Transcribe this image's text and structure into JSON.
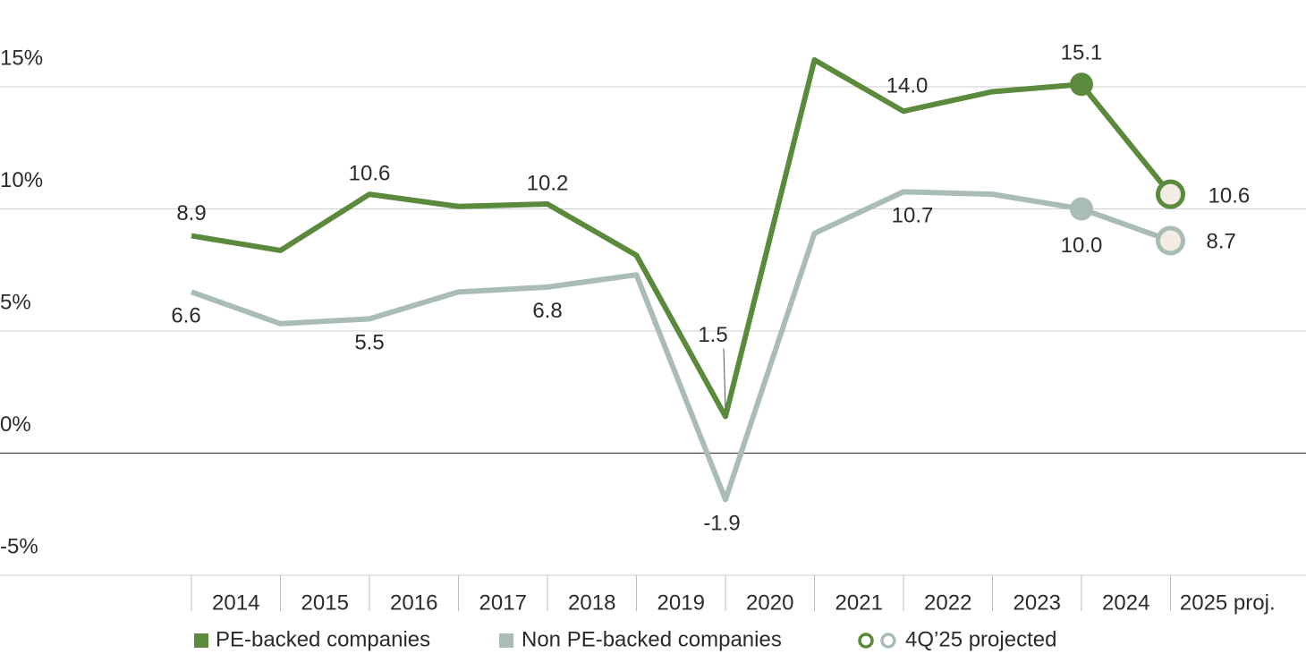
{
  "chart_data": {
    "type": "line",
    "categories": [
      "2014",
      "2015",
      "2016",
      "2017",
      "2018",
      "2019",
      "2020",
      "2021",
      "2022",
      "2023",
      "2024",
      "2025 proj."
    ],
    "series": [
      {
        "name": "PE-backed companies",
        "color": "#5b8a3c",
        "values": [
          8.9,
          8.3,
          10.6,
          10.1,
          10.2,
          8.1,
          1.5,
          16.1,
          14.0,
          14.8,
          15.1,
          10.6
        ],
        "value_labels": [
          "8.9",
          null,
          "10.6",
          null,
          "10.2",
          null,
          "1.5",
          null,
          "14.0",
          null,
          "15.1",
          "10.6"
        ]
      },
      {
        "name": "Non PE-backed companies",
        "color": "#a9bdb5",
        "values": [
          6.6,
          5.3,
          5.5,
          6.6,
          6.8,
          7.3,
          -1.9,
          9.0,
          10.7,
          10.6,
          10.0,
          8.7
        ],
        "value_labels": [
          "6.6",
          null,
          "5.5",
          null,
          "6.8",
          null,
          "-1.9",
          null,
          "10.7",
          null,
          "10.0",
          "8.7"
        ]
      }
    ],
    "projected_label": "4Q’25 projected",
    "ylim": [
      -5,
      15
    ],
    "yticks": [
      {
        "value": -5,
        "label": "-5%"
      },
      {
        "value": 0,
        "label": "0%"
      },
      {
        "value": 5,
        "label": "5%"
      },
      {
        "value": 10,
        "label": "10%"
      },
      {
        "value": 15,
        "label": "15%"
      }
    ],
    "grid": true
  }
}
